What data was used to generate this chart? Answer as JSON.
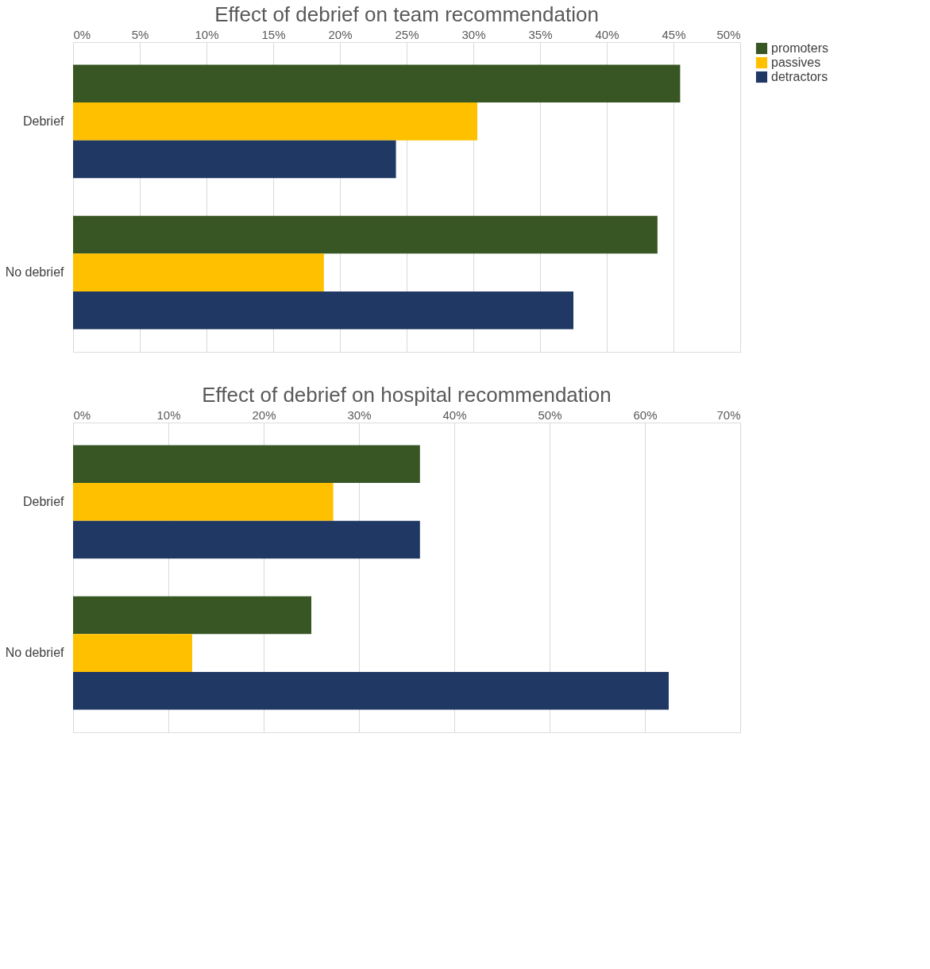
{
  "chart_data": [
    {
      "type": "bar",
      "orientation": "horizontal",
      "title": "Effect of debrief on team recommendation",
      "categories": [
        "Debrief",
        "No debrief"
      ],
      "series": [
        {
          "name": "promoters",
          "color": "#375623",
          "values": [
            45.5,
            43.8
          ]
        },
        {
          "name": "passives",
          "color": "#ffc000",
          "values": [
            30.3,
            18.8
          ]
        },
        {
          "name": "detractors",
          "color": "#1f3864",
          "values": [
            24.2,
            37.5
          ]
        }
      ],
      "xlim": [
        0,
        50
      ],
      "xticks": [
        {
          "value": 0,
          "label": "0%"
        },
        {
          "value": 5,
          "label": "5%"
        },
        {
          "value": 10,
          "label": "10%"
        },
        {
          "value": 15,
          "label": "15%"
        },
        {
          "value": 20,
          "label": "20%"
        },
        {
          "value": 25,
          "label": "25%"
        },
        {
          "value": 30,
          "label": "30%"
        },
        {
          "value": 35,
          "label": "35%"
        },
        {
          "value": 40,
          "label": "40%"
        },
        {
          "value": 45,
          "label": "45%"
        },
        {
          "value": 50,
          "label": "50%"
        }
      ],
      "grid": "x",
      "legend": "right"
    },
    {
      "type": "bar",
      "orientation": "horizontal",
      "title": "Effect of debrief on hospital recommendation",
      "categories": [
        "Debrief",
        "No debrief"
      ],
      "series": [
        {
          "name": "promoters",
          "color": "#375623",
          "values": [
            36.4,
            25.0
          ]
        },
        {
          "name": "passives",
          "color": "#ffc000",
          "values": [
            27.3,
            12.5
          ]
        },
        {
          "name": "detractors",
          "color": "#1f3864",
          "values": [
            36.4,
            62.5
          ]
        }
      ],
      "xlim": [
        0,
        70
      ],
      "xticks": [
        {
          "value": 0,
          "label": "0%"
        },
        {
          "value": 10,
          "label": "10%"
        },
        {
          "value": 20,
          "label": "20%"
        },
        {
          "value": 30,
          "label": "30%"
        },
        {
          "value": 40,
          "label": "40%"
        },
        {
          "value": 50,
          "label": "50%"
        },
        {
          "value": 60,
          "label": "60%"
        },
        {
          "value": 70,
          "label": "70%"
        }
      ],
      "grid": "x",
      "legend": "right"
    }
  ]
}
